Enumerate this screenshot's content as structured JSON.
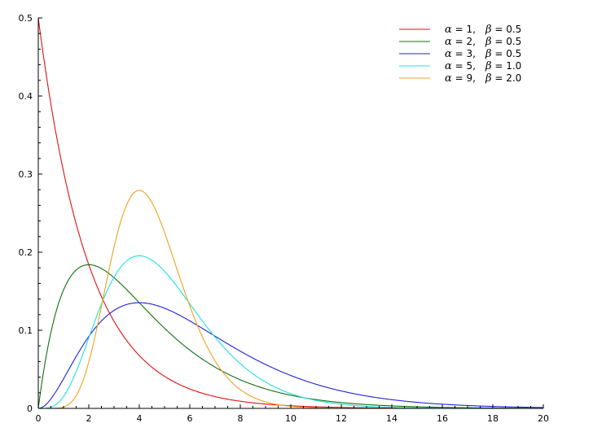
{
  "chart_data": {
    "type": "line",
    "title": "",
    "xlabel": "",
    "ylabel": "",
    "xlim": [
      0,
      20
    ],
    "ylim": [
      0,
      0.5
    ],
    "x_ticks": [
      "0",
      "2",
      "4",
      "6",
      "8",
      "10",
      "12",
      "14",
      "16",
      "18",
      "20"
    ],
    "y_ticks": [
      "0",
      "0.1",
      "0.2",
      "0.3",
      "0.4",
      "0.5"
    ],
    "grid": false,
    "legend_position": "top-right",
    "series": [
      {
        "name": "α = 1,   β = 0.5",
        "alpha_text": "α",
        "alpha_eq": "= 1,",
        "beta_text": "β",
        "beta_eq": "= 0.5",
        "alpha": 1,
        "beta": 0.5,
        "color": "#e01010"
      },
      {
        "name": "α = 2,   β = 0.5",
        "alpha_text": "α",
        "alpha_eq": "= 2,",
        "beta_text": "β",
        "beta_eq": "= 0.5",
        "alpha": 2,
        "beta": 0.5,
        "color": "#107010"
      },
      {
        "name": "α = 3,   β = 0.5",
        "alpha_text": "α",
        "alpha_eq": "= 3,",
        "beta_text": "β",
        "beta_eq": "= 0.5",
        "alpha": 3,
        "beta": 0.5,
        "color": "#2020e0"
      },
      {
        "name": "α = 5,   β = 1.0",
        "alpha_text": "α",
        "alpha_eq": "= 5,",
        "beta_text": "β",
        "beta_eq": "= 1.0",
        "alpha": 5,
        "beta": 1.0,
        "color": "#20e0e0"
      },
      {
        "name": "α = 9,   β = 2.0",
        "alpha_text": "α",
        "alpha_eq": "= 9,",
        "beta_text": "β",
        "beta_eq": "= 2.0",
        "alpha": 9,
        "beta": 2.0,
        "color": "#f0a020"
      }
    ]
  }
}
